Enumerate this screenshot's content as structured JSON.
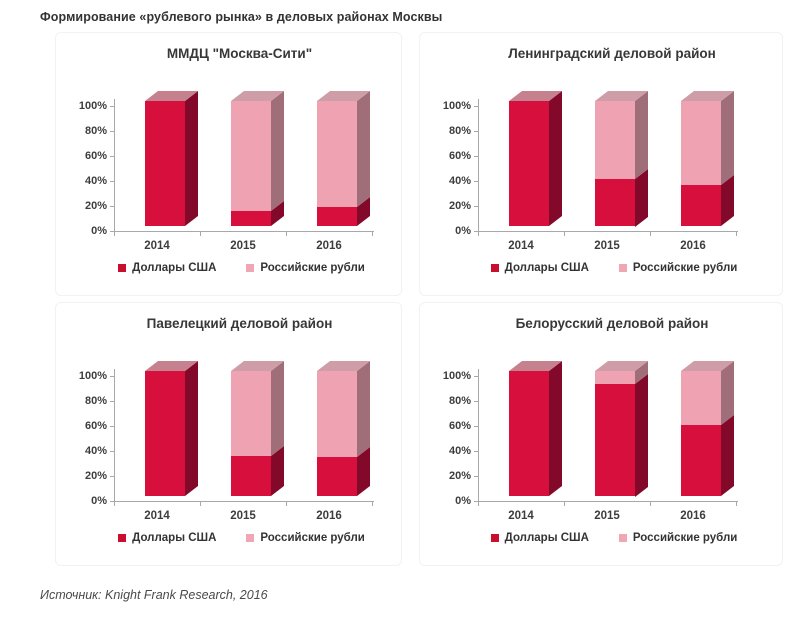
{
  "page": {
    "title": "Формирование «рублевого рынка» в деловых районах Москвы",
    "source": "Источник: Knight Frank Research, 2016"
  },
  "axis": {
    "y_ticks": [
      0,
      20,
      40,
      60,
      80,
      100
    ],
    "y_tick_suffix": "%"
  },
  "legend": {
    "usd_label": "Доллары США",
    "rub_label": "Российские рубли"
  },
  "colors": {
    "usd_front": "#d60f3c",
    "usd_side": "#83092a",
    "usd_top": "#c5818e",
    "rub_front": "#efa3b2",
    "rub_side": "#a06e79",
    "rub_top": "#cf9da7",
    "legend_usd": "#c8102e",
    "legend_rub": "#f1a6b4",
    "axis_line": "#a8a8a8"
  },
  "chart_data": [
    {
      "type": "bar",
      "stacked": true,
      "title": "ММДЦ \"Москва-Сити\"",
      "categories": [
        "2014",
        "2015",
        "2016"
      ],
      "series": [
        {
          "name": "Доллары США",
          "values": [
            100,
            12,
            15
          ]
        },
        {
          "name": "Российские рубли",
          "values": [
            0,
            88,
            85
          ]
        }
      ],
      "ylim": [
        0,
        100
      ],
      "grid": false,
      "legend_position": "bottom"
    },
    {
      "type": "bar",
      "stacked": true,
      "title": "Ленинградский деловой район",
      "categories": [
        "2014",
        "2015",
        "2016"
      ],
      "series": [
        {
          "name": "Доллары США",
          "values": [
            100,
            38,
            33
          ]
        },
        {
          "name": "Российские рубли",
          "values": [
            0,
            62,
            67
          ]
        }
      ],
      "ylim": [
        0,
        100
      ],
      "grid": false,
      "legend_position": "bottom"
    },
    {
      "type": "bar",
      "stacked": true,
      "title": "Павелецкий деловой район",
      "categories": [
        "2014",
        "2015",
        "2016"
      ],
      "series": [
        {
          "name": "Доллары США",
          "values": [
            100,
            32,
            31
          ]
        },
        {
          "name": "Российские рубли",
          "values": [
            0,
            68,
            69
          ]
        }
      ],
      "ylim": [
        0,
        100
      ],
      "grid": false,
      "legend_position": "bottom"
    },
    {
      "type": "bar",
      "stacked": true,
      "title": "Белорусский деловой район",
      "categories": [
        "2014",
        "2015",
        "2016"
      ],
      "series": [
        {
          "name": "Доллары США",
          "values": [
            100,
            90,
            57
          ]
        },
        {
          "name": "Российские рубли",
          "values": [
            0,
            10,
            43
          ]
        }
      ],
      "ylim": [
        0,
        100
      ],
      "grid": false,
      "legend_position": "bottom"
    }
  ]
}
